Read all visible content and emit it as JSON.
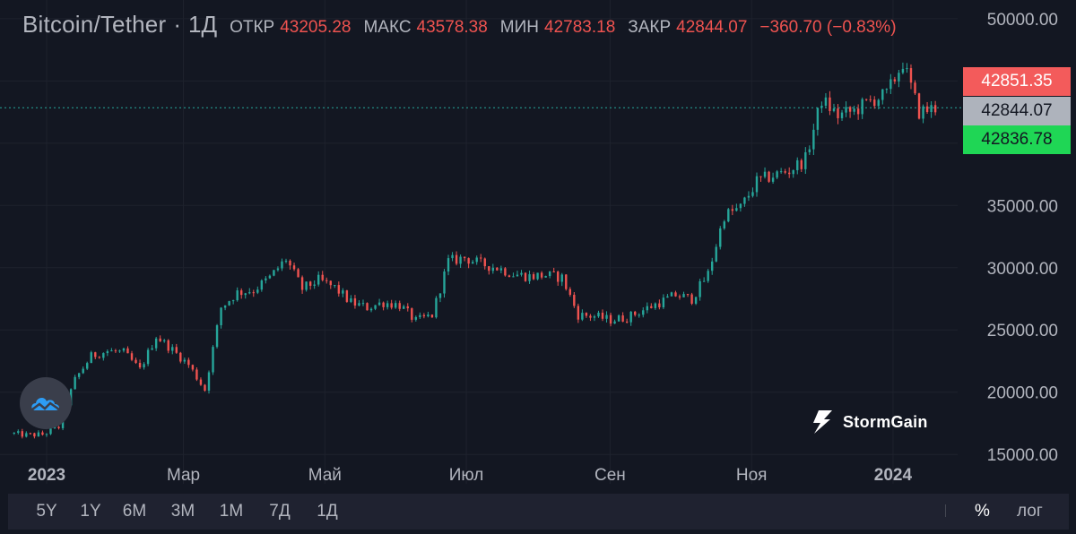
{
  "legend": {
    "symbol": "Bitcoin/Tether",
    "separator": "·",
    "timeframe": "1Д",
    "open_label": "ОТКР",
    "open": "43205.28",
    "high_label": "МАКС",
    "high": "43578.38",
    "low_label": "МИН",
    "low": "42783.18",
    "close_label": "ЗАКР",
    "close": "42844.07",
    "change": "−360.70 (−0.83%)"
  },
  "price_tags": {
    "ask": "42851.35",
    "last": "42844.07",
    "bid": "42836.78"
  },
  "brand": {
    "name": "StormGain"
  },
  "range_buttons": [
    "5Y",
    "1Y",
    "6M",
    "3M",
    "1M",
    "7Д",
    "1Д"
  ],
  "options": {
    "percent": "%",
    "log": "лог"
  },
  "colors": {
    "up": "#26a69a",
    "down": "#ef5350",
    "background": "#131722",
    "grid": "#1e222d"
  },
  "chart_data": {
    "type": "candlestick",
    "y_ticks": [
      "50000.00",
      "35000.00",
      "30000.00",
      "25000.00",
      "20000.00",
      "15000.00"
    ],
    "x_ticks": [
      "2023",
      "Мар",
      "Май",
      "Июл",
      "Сен",
      "Ноя",
      "2024"
    ],
    "ylim": [
      13000,
      51500
    ],
    "last_price": 42844.07,
    "grid": true,
    "series": [
      {
        "date": "2022-12-18",
        "close": 16700
      },
      {
        "date": "2022-12-25",
        "close": 16550
      },
      {
        "date": "2023-01-01",
        "close": 16600
      },
      {
        "date": "2023-01-08",
        "close": 17200
      },
      {
        "date": "2023-01-15",
        "close": 21000
      },
      {
        "date": "2023-01-22",
        "close": 22900
      },
      {
        "date": "2023-01-29",
        "close": 23300
      },
      {
        "date": "2023-02-05",
        "close": 23200
      },
      {
        "date": "2023-02-12",
        "close": 21800
      },
      {
        "date": "2023-02-19",
        "close": 24500
      },
      {
        "date": "2023-02-26",
        "close": 23400
      },
      {
        "date": "2023-03-05",
        "close": 22200
      },
      {
        "date": "2023-03-12",
        "close": 20200
      },
      {
        "date": "2023-03-19",
        "close": 26800
      },
      {
        "date": "2023-03-26",
        "close": 28000
      },
      {
        "date": "2023-04-02",
        "close": 28200
      },
      {
        "date": "2023-04-09",
        "close": 29200
      },
      {
        "date": "2023-04-16",
        "close": 30700
      },
      {
        "date": "2023-04-23",
        "close": 28300
      },
      {
        "date": "2023-04-30",
        "close": 29000
      },
      {
        "date": "2023-05-07",
        "close": 28400
      },
      {
        "date": "2023-05-14",
        "close": 27200
      },
      {
        "date": "2023-05-21",
        "close": 26800
      },
      {
        "date": "2023-05-28",
        "close": 27200
      },
      {
        "date": "2023-06-04",
        "close": 27000
      },
      {
        "date": "2023-06-11",
        "close": 25700
      },
      {
        "date": "2023-06-18",
        "close": 26200
      },
      {
        "date": "2023-06-25",
        "close": 30500
      },
      {
        "date": "2023-07-02",
        "close": 30800
      },
      {
        "date": "2023-07-09",
        "close": 30300
      },
      {
        "date": "2023-07-16",
        "close": 30000
      },
      {
        "date": "2023-07-23",
        "close": 29500
      },
      {
        "date": "2023-07-30",
        "close": 29300
      },
      {
        "date": "2023-08-06",
        "close": 29400
      },
      {
        "date": "2023-08-13",
        "close": 29200
      },
      {
        "date": "2023-08-20",
        "close": 26200
      },
      {
        "date": "2023-08-27",
        "close": 26100
      },
      {
        "date": "2023-09-03",
        "close": 25800
      },
      {
        "date": "2023-09-10",
        "close": 26000
      },
      {
        "date": "2023-09-17",
        "close": 26600
      },
      {
        "date": "2023-09-24",
        "close": 27200
      },
      {
        "date": "2023-10-01",
        "close": 27800
      },
      {
        "date": "2023-10-08",
        "close": 27500
      },
      {
        "date": "2023-10-15",
        "close": 29500
      },
      {
        "date": "2023-10-22",
        "close": 34200
      },
      {
        "date": "2023-10-29",
        "close": 34800
      },
      {
        "date": "2023-11-05",
        "close": 36900
      },
      {
        "date": "2023-11-12",
        "close": 37400
      },
      {
        "date": "2023-11-19",
        "close": 37800
      },
      {
        "date": "2023-11-26",
        "close": 38700
      },
      {
        "date": "2023-12-03",
        "close": 43500
      },
      {
        "date": "2023-12-10",
        "close": 42200
      },
      {
        "date": "2023-12-17",
        "close": 42600
      },
      {
        "date": "2023-12-24",
        "close": 43400
      },
      {
        "date": "2023-12-31",
        "close": 43900
      },
      {
        "date": "2024-01-07",
        "close": 46500
      },
      {
        "date": "2024-01-14",
        "close": 42500
      },
      {
        "date": "2024-01-21",
        "close": 42844
      }
    ]
  }
}
